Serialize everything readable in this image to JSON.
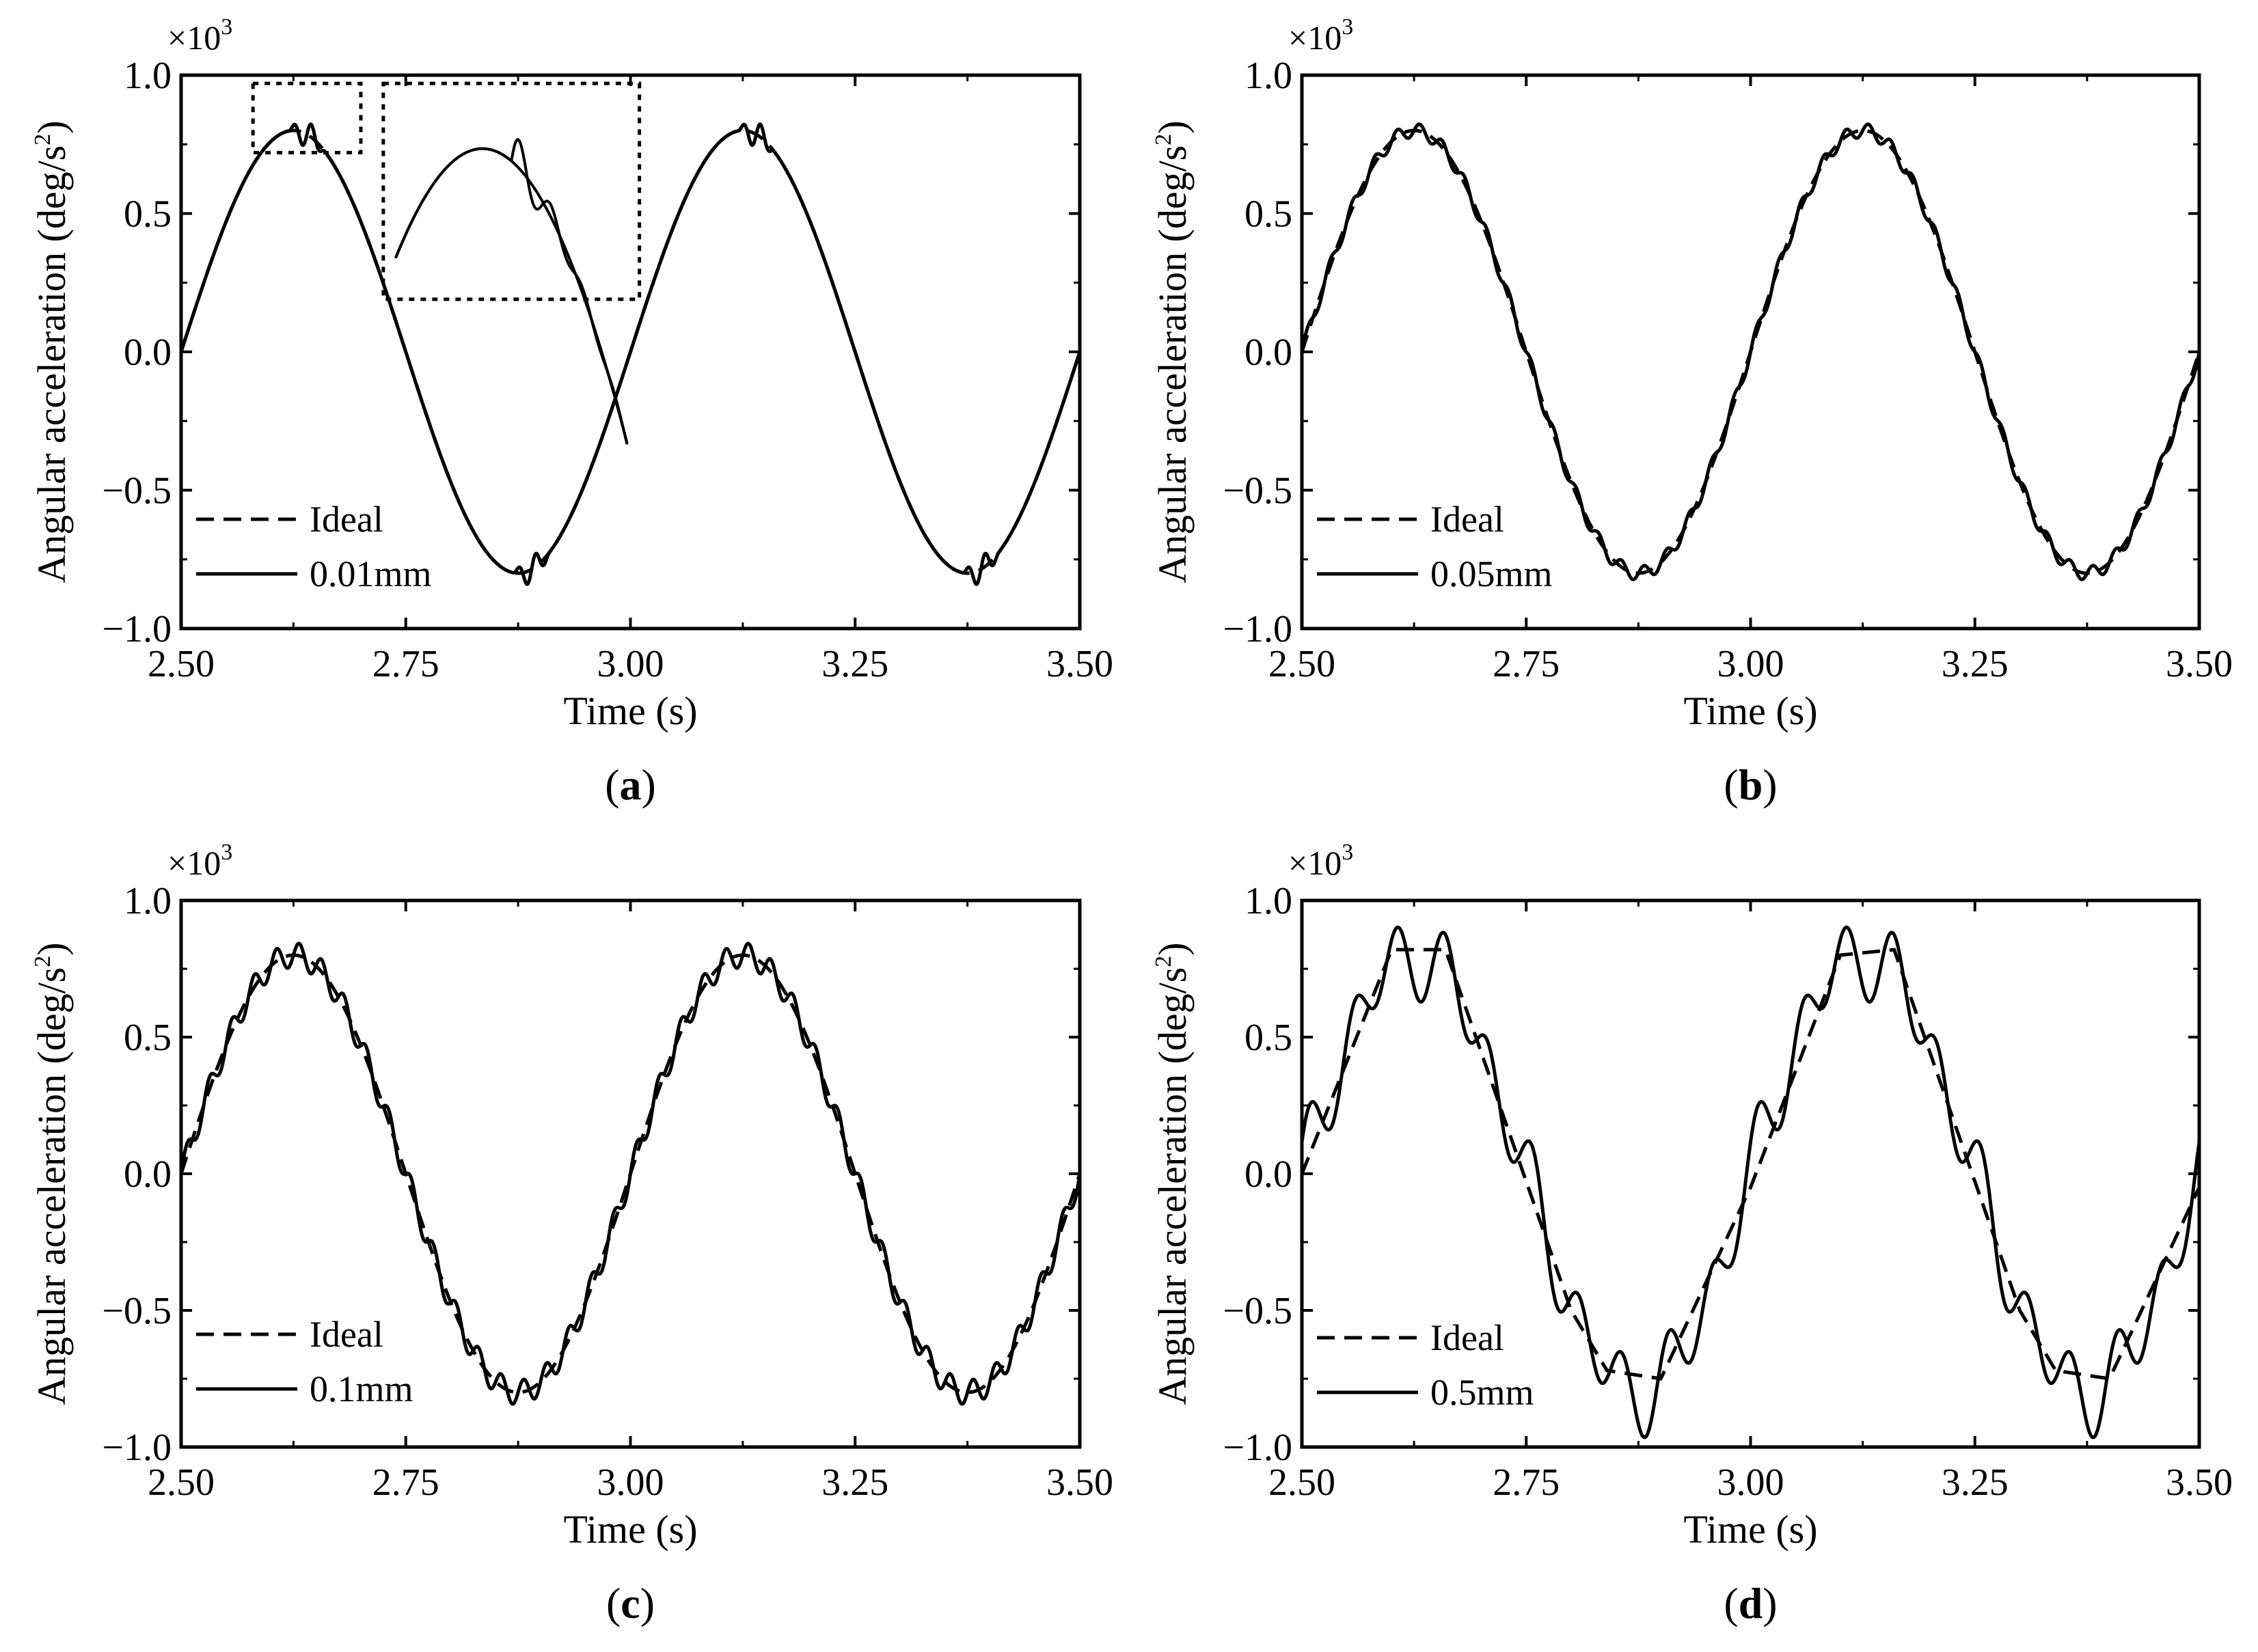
{
  "figure": {
    "legend_ideal_label": "Ideal"
  },
  "chart_data": [
    {
      "type": "line",
      "panel_label": "a",
      "xlabel": "Time (s)",
      "ylabel": "Angular acceleration (deg/s²)",
      "ylabel_main": "Angular acceleration (deg/s",
      "ylabel_sup": "2",
      "ylabel_close": ")",
      "scale_prefix": "×10",
      "scale_exp": "3",
      "xlim": [
        2.5,
        3.5
      ],
      "ylim": [
        -1.0,
        1.0
      ],
      "xticks": [
        "2.50",
        "2.75",
        "3.00",
        "3.25",
        "3.50"
      ],
      "yticks": [
        "1.0",
        "0.5",
        "0.0",
        "−0.5",
        "−1.0"
      ],
      "series": [
        {
          "name": "Ideal",
          "style": "dashed",
          "amplitude": 0.8,
          "frequency_hz": 2,
          "phase_start": 2.5
        },
        {
          "name": "0.01mm",
          "style": "solid",
          "ripple": "small oscillations near peaks and troughs",
          "ripple_amplitude": 0.05,
          "ripple_frequency_hz": 50,
          "ripple_window_s": 0.02
        }
      ],
      "annotation": "dotted boxes zoom on the first peak (about t = 2.58 to 2.68 s)",
      "legend": [
        "Ideal",
        "0.01mm"
      ]
    },
    {
      "type": "line",
      "panel_label": "b",
      "xlabel": "Time (s)",
      "ylabel": "Angular acceleration (deg/s²)",
      "ylabel_main": "Angular acceleration (deg/s",
      "ylabel_sup": "2",
      "ylabel_close": ")",
      "scale_prefix": "×10",
      "scale_exp": "3",
      "xlim": [
        2.5,
        3.5
      ],
      "ylim": [
        -1.0,
        1.0
      ],
      "xticks": [
        "2.50",
        "2.75",
        "3.00",
        "3.25",
        "3.50"
      ],
      "yticks": [
        "1.0",
        "0.5",
        "0.0",
        "−0.5",
        "−1.0"
      ],
      "series": [
        {
          "name": "Ideal",
          "style": "dashed",
          "amplitude": 0.8,
          "frequency_hz": 2,
          "phase_start": 2.5
        },
        {
          "name": "0.05mm",
          "style": "solid",
          "ripple_amplitude": 0.025,
          "ripple_frequency_hz": 40
        }
      ],
      "legend": [
        "Ideal",
        "0.05mm"
      ]
    },
    {
      "type": "line",
      "panel_label": "c",
      "xlabel": "Time (s)",
      "ylabel": "Angular acceleration (deg/s²)",
      "ylabel_main": "Angular acceleration (deg/s",
      "ylabel_sup": "2",
      "ylabel_close": ")",
      "scale_prefix": "×10",
      "scale_exp": "3",
      "xlim": [
        2.5,
        3.5
      ],
      "ylim": [
        -1.0,
        1.0
      ],
      "xticks": [
        "2.50",
        "2.75",
        "3.00",
        "3.25",
        "3.50"
      ],
      "yticks": [
        "1.0",
        "0.5",
        "0.0",
        "−0.5",
        "−1.0"
      ],
      "series": [
        {
          "name": "Ideal",
          "style": "dashed",
          "amplitude": 0.8,
          "frequency_hz": 2,
          "phase_start": 2.5
        },
        {
          "name": "0.1mm",
          "style": "solid",
          "ripple_amplitude": 0.045,
          "ripple_frequency_hz": 40
        }
      ],
      "legend": [
        "Ideal",
        "0.1mm"
      ]
    },
    {
      "type": "line",
      "panel_label": "d",
      "xlabel": "Time (s)",
      "ylabel": "Angular acceleration (deg/s²)",
      "ylabel_main": "Angular acceleration (deg/s",
      "ylabel_sup": "2",
      "ylabel_close": ")",
      "scale_prefix": "×10",
      "scale_exp": "3",
      "xlim": [
        2.5,
        3.5
      ],
      "ylim": [
        -1.0,
        1.0
      ],
      "xticks": [
        "2.50",
        "2.75",
        "3.00",
        "3.25",
        "3.50"
      ],
      "yticks": [
        "1.0",
        "0.5",
        "0.0",
        "−0.5",
        "−1.0"
      ],
      "series": [
        {
          "name": "Ideal",
          "style": "dashed",
          "shape": "piecewise-linear",
          "points": [
            [
              2.5,
              0.0
            ],
            [
              2.6,
              0.82
            ],
            [
              2.66,
              0.82
            ],
            [
              2.8,
              -0.5
            ],
            [
              2.84,
              -0.72
            ],
            [
              2.9,
              -0.75
            ],
            [
              3.0,
              -0.05
            ],
            [
              3.1,
              0.8
            ],
            [
              3.16,
              0.82
            ],
            [
              3.3,
              -0.5
            ],
            [
              3.34,
              -0.72
            ],
            [
              3.4,
              -0.75
            ],
            [
              3.5,
              -0.05
            ]
          ]
        },
        {
          "name": "0.5mm",
          "style": "solid",
          "ripple_amplitude": 0.12,
          "ripple_frequency_hz": 20,
          "peak_max": 0.97,
          "trough_min": -0.87
        }
      ],
      "legend": [
        "Ideal",
        "0.5mm"
      ]
    }
  ]
}
